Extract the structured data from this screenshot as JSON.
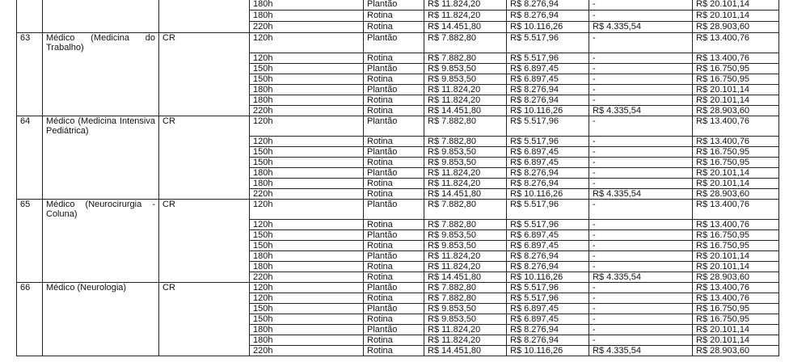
{
  "groups": [
    {
      "number": "",
      "name": "",
      "type": "",
      "partial": true,
      "rows": [
        [
          "180h",
          "Plantão",
          "R$ 11.824,20",
          "R$ 8.276,94",
          "-",
          "R$ 20.101,14"
        ],
        [
          "180h",
          "Rotina",
          "R$ 11.824,20",
          "R$ 8.276,94",
          "-",
          "R$ 20.101,14"
        ],
        [
          "220h",
          "Rotina",
          "R$ 14.451,80",
          "R$ 10.116,26",
          "R$ 4.335,54",
          "R$ 28.903,60"
        ]
      ]
    },
    {
      "number": "63",
      "name": "Médico (Medicina do Trabalho)",
      "type": "CR",
      "rows": [
        [
          "120h",
          "Plantão",
          "R$ 7.882,80",
          "R$ 5.517,96",
          "-",
          "R$ 13.400,76"
        ],
        [
          "120h",
          "Rotina",
          "R$ 7.882,80",
          "R$ 5.517,96",
          "-",
          "R$ 13.400,76"
        ],
        [
          "150h",
          "Plantão",
          "R$ 9.853,50",
          "R$ 6.897,45",
          "-",
          "R$ 16.750,95"
        ],
        [
          "150h",
          "Rotina",
          "R$ 9.853,50",
          "R$ 6.897,45",
          "-",
          "R$ 16.750,95"
        ],
        [
          "180h",
          "Plantão",
          "R$ 11.824,20",
          "R$ 8.276,94",
          "-",
          "R$ 20.101,14"
        ],
        [
          "180h",
          "Rotina",
          "R$ 11.824,20",
          "R$ 8.276,94",
          "-",
          "R$ 20.101,14"
        ],
        [
          "220h",
          "Rotina",
          "R$ 14.451,80",
          "R$ 10.116,26",
          "R$ 4.335,54",
          "R$ 28.903,60"
        ]
      ]
    },
    {
      "number": "64",
      "name": "Médico (Medicina Intensiva Pediátrica)",
      "type": "CR",
      "rows": [
        [
          "120h",
          "Plantão",
          "R$ 7.882,80",
          "R$ 5.517,96",
          "-",
          "R$ 13.400,76"
        ],
        [
          "120h",
          "Rotina",
          "R$ 7.882,80",
          "R$ 5.517,96",
          "-",
          "R$ 13.400,76"
        ],
        [
          "150h",
          "Plantão",
          "R$ 9.853,50",
          "R$ 6.897,45",
          "-",
          "R$ 16.750,95"
        ],
        [
          "150h",
          "Rotina",
          "R$ 9.853,50",
          "R$ 6.897,45",
          "-",
          "R$ 16.750,95"
        ],
        [
          "180h",
          "Plantão",
          "R$ 11.824,20",
          "R$ 8.276,94",
          "-",
          "R$ 20.101,14"
        ],
        [
          "180h",
          "Rotina",
          "R$ 11.824,20",
          "R$ 8.276,94",
          "-",
          "R$ 20.101,14"
        ],
        [
          "220h",
          "Rotina",
          "R$ 14.451,80",
          "R$ 10.116,26",
          "R$ 4.335,54",
          "R$ 28.903,60"
        ]
      ]
    },
    {
      "number": "65",
      "name": "Médico (Neurocirurgia - Coluna)",
      "type": "CR",
      "rows": [
        [
          "120h",
          "Plantão",
          "R$ 7.882,80",
          "R$ 5.517,96",
          "-",
          "R$ 13.400,76"
        ],
        [
          "120h",
          "Rotina",
          "R$ 7.882,80",
          "R$ 5.517,96",
          "-",
          "R$ 13.400,76"
        ],
        [
          "150h",
          "Plantão",
          "R$ 9.853,50",
          "R$ 6.897,45",
          "-",
          "R$ 16.750,95"
        ],
        [
          "150h",
          "Rotina",
          "R$ 9.853,50",
          "R$ 6.897,45",
          "-",
          "R$ 16.750,95"
        ],
        [
          "180h",
          "Plantão",
          "R$ 11.824,20",
          "R$ 8.276,94",
          "-",
          "R$ 20.101,14"
        ],
        [
          "180h",
          "Rotina",
          "R$ 11.824,20",
          "R$ 8.276,94",
          "-",
          "R$ 20.101,14"
        ],
        [
          "220h",
          "Rotina",
          "R$ 14.451,80",
          "R$ 10.116,26",
          "R$ 4.335,54",
          "R$ 28.903,60"
        ]
      ]
    },
    {
      "number": "66",
      "name": "Médico (Neurologia)",
      "type": "CR",
      "single": true,
      "rows": [
        [
          "120h",
          "Plantão",
          "R$ 7.882,80",
          "R$ 5.517,96",
          "-",
          "R$ 13.400,76"
        ],
        [
          "120h",
          "Rotina",
          "R$ 7.882,80",
          "R$ 5.517,96",
          "-",
          "R$ 13.400,76"
        ],
        [
          "150h",
          "Plantão",
          "R$ 9.853,50",
          "R$ 6.897,45",
          "-",
          "R$ 16.750,95"
        ],
        [
          "150h",
          "Rotina",
          "R$ 9.853,50",
          "R$ 6.897,45",
          "-",
          "R$ 16.750,95"
        ],
        [
          "180h",
          "Plantão",
          "R$ 11.824,20",
          "R$ 8.276,94",
          "-",
          "R$ 20.101,14"
        ],
        [
          "180h",
          "Rotina",
          "R$ 11.824,20",
          "R$ 8.276,94",
          "-",
          "R$ 20.101,14"
        ],
        [
          "220h",
          "Rotina",
          "R$ 14.451,80",
          "R$ 10.116,26",
          "R$ 4.335,54",
          "R$ 28.903,60"
        ]
      ]
    }
  ]
}
